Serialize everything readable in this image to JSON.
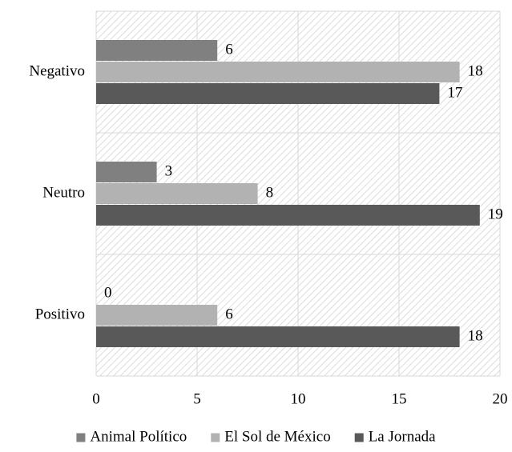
{
  "chart_data": {
    "type": "bar",
    "orientation": "horizontal",
    "categories": [
      "Negativo",
      "Neutro",
      "Positivo"
    ],
    "series": [
      {
        "name": "Animal Político",
        "values": [
          6,
          3,
          0
        ],
        "color": "#808080"
      },
      {
        "name": "El Sol de México",
        "values": [
          18,
          8,
          6
        ],
        "color": "#b2b2b2"
      },
      {
        "name": "La Jornada",
        "values": [
          17,
          19,
          18
        ],
        "color": "#595959"
      }
    ],
    "xlim": [
      0,
      20
    ],
    "x_ticks": [
      0,
      5,
      10,
      15,
      20
    ],
    "grid": true,
    "background": "diagonal-hatch",
    "legend_position": "bottom",
    "data_labels": true
  }
}
